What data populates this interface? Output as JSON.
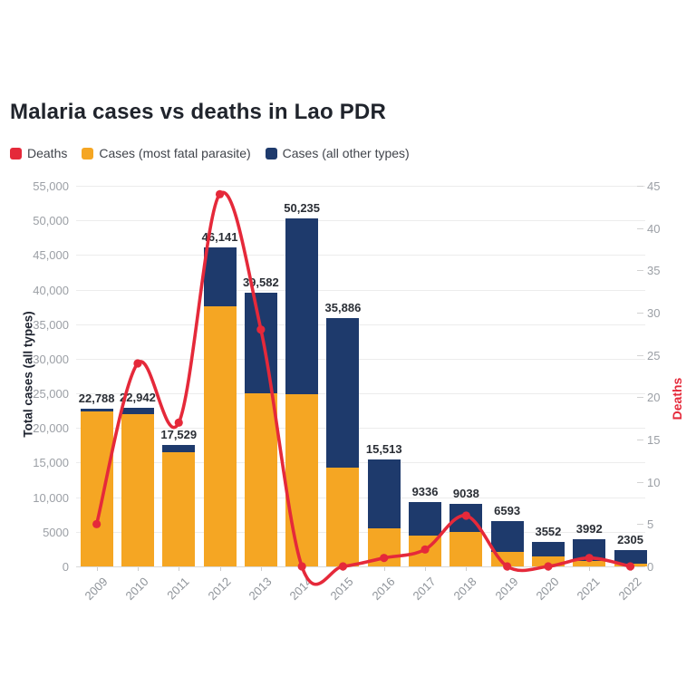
{
  "title": "Malaria cases vs deaths in Lao PDR",
  "legend": [
    {
      "label": "Deaths",
      "color": "#e5293a",
      "icon": "red-square-swatch"
    },
    {
      "label": "Cases (most fatal parasite)",
      "color": "#f5a623",
      "icon": "orange-square-swatch"
    },
    {
      "label": "Cases (all other types)",
      "color": "#1e3a6c",
      "icon": "navy-square-swatch"
    }
  ],
  "axes": {
    "left_title": "Total cases (all types)",
    "right_title": "Deaths",
    "right_title_color": "#e5293a"
  },
  "chart_data": {
    "type": "bar",
    "subtype": "stacked-bars-with-line-overlay",
    "title": "Malaria cases vs deaths in Lao PDR",
    "categories": [
      "2009",
      "2010",
      "2011",
      "2012",
      "2013",
      "2014",
      "2015",
      "2016",
      "2017",
      "2018",
      "2019",
      "2020",
      "2021",
      "2022"
    ],
    "totals": [
      22788,
      22942,
      17529,
      46141,
      39582,
      50235,
      35886,
      15513,
      9336,
      9038,
      6593,
      3552,
      3992,
      2305
    ],
    "total_labels": [
      "22,788",
      "22,942",
      "17,529",
      "46,141",
      "39,582",
      "50,235",
      "35,886",
      "15,513",
      "9336",
      "9038",
      "6593",
      "3552",
      "3992",
      "2305"
    ],
    "series": [
      {
        "name": "Cases (most fatal parasite)",
        "chart": "bar",
        "stack_order": 0,
        "axis": "left",
        "color": "#f5a623",
        "values": [
          22400,
          22000,
          16500,
          37600,
          25000,
          24900,
          14300,
          5500,
          4450,
          5000,
          2100,
          1400,
          800,
          450
        ]
      },
      {
        "name": "Cases (all other types)",
        "chart": "bar",
        "stack_order": 1,
        "axis": "left",
        "color": "#1e3a6c",
        "values": [
          388,
          942,
          1029,
          8541,
          14582,
          25335,
          21586,
          10013,
          4886,
          4038,
          4493,
          2152,
          3192,
          1855
        ]
      },
      {
        "name": "Deaths",
        "chart": "line",
        "axis": "right",
        "color": "#e5293a",
        "values": [
          5,
          24,
          17,
          44,
          28,
          0,
          0,
          1,
          2,
          6,
          0,
          0,
          1,
          0
        ]
      }
    ],
    "left_axis": {
      "min": 0,
      "max": 55000,
      "step": 5000,
      "tick_labels": [
        "0",
        "5000",
        "10,000",
        "15,000",
        "20,000",
        "25,000",
        "30,000",
        "35,000",
        "40,000",
        "45,000",
        "50,000",
        "55,000"
      ]
    },
    "right_axis": {
      "min": 0,
      "max": 45,
      "step": 5,
      "tick_labels": [
        "0",
        "5",
        "10",
        "15",
        "20",
        "25",
        "30",
        "35",
        "40",
        "45"
      ]
    },
    "xlabel": "",
    "ylabel": "Total cases (all types)",
    "y2label": "Deaths",
    "grid": "horizontal-only",
    "legend_position": "top-left"
  }
}
